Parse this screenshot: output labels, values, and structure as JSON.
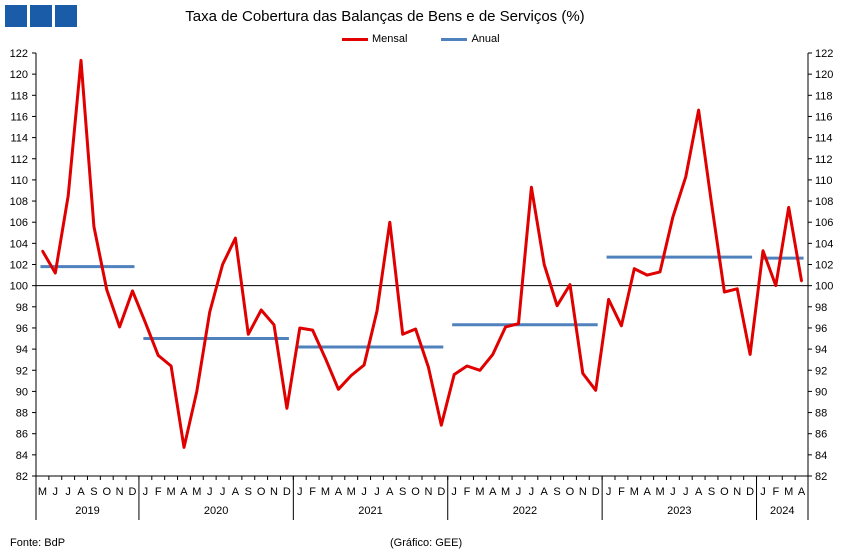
{
  "header": {
    "title": "Taxa de Cobertura das Balanças de Bens e de Serviços (%)",
    "logo_color": "#1a5ca8"
  },
  "footer": {
    "source": "Fonte: BdP",
    "credit": "(Gráfico: GEE)"
  },
  "chart_data": {
    "type": "line",
    "title": "Taxa de Cobertura das Balanças de Bens e de Serviços (%)",
    "xlabel": "",
    "ylabel": "",
    "ylim": [
      82,
      122
    ],
    "y_ticks": [
      82,
      84,
      86,
      88,
      90,
      92,
      94,
      96,
      98,
      100,
      102,
      104,
      106,
      108,
      110,
      112,
      114,
      116,
      118,
      120,
      122
    ],
    "y_axis_both_sides": true,
    "reference_line": 100,
    "grid": false,
    "legend_position": "top-center",
    "months": [
      "M",
      "J",
      "J",
      "A",
      "S",
      "O",
      "N",
      "D",
      "J",
      "F",
      "M",
      "A",
      "M",
      "J",
      "J",
      "A",
      "S",
      "O",
      "N",
      "D",
      "J",
      "F",
      "M",
      "A",
      "M",
      "J",
      "J",
      "A",
      "S",
      "O",
      "N",
      "D",
      "J",
      "F",
      "M",
      "A",
      "M",
      "J",
      "J",
      "A",
      "S",
      "O",
      "N",
      "D",
      "J",
      "F",
      "M",
      "A",
      "M",
      "J",
      "J",
      "A",
      "S",
      "O",
      "N",
      "D",
      "J",
      "F",
      "M",
      "A"
    ],
    "years": [
      {
        "label": "2019",
        "months": 8
      },
      {
        "label": "2020",
        "months": 12
      },
      {
        "label": "2021",
        "months": 12
      },
      {
        "label": "2022",
        "months": 12
      },
      {
        "label": "2023",
        "months": 12
      },
      {
        "label": "2024",
        "months": 4
      }
    ],
    "series": [
      {
        "name": "Mensal",
        "color": "#e00000",
        "values": [
          103.3,
          101.2,
          108.5,
          121.3,
          105.6,
          99.6,
          96.1,
          99.5,
          96.5,
          93.4,
          92.4,
          84.7,
          90.0,
          97.5,
          102.0,
          104.5,
          95.4,
          97.7,
          96.3,
          88.4,
          96.0,
          95.8,
          93.1,
          90.2,
          91.5,
          92.5,
          97.6,
          106.0,
          95.4,
          95.9,
          92.3,
          86.8,
          91.6,
          92.4,
          92.0,
          93.5,
          96.1,
          96.4,
          109.3,
          102.0,
          98.1,
          100.1,
          91.7,
          90.1,
          98.7,
          96.2,
          101.6,
          101.0,
          101.3,
          106.5,
          110.3,
          116.6,
          107.8,
          99.4,
          99.7,
          93.5,
          103.3,
          100.0,
          107.4,
          100.4
        ]
      },
      {
        "name": "Anual",
        "color": "#4f81bd",
        "segments": [
          {
            "year": "2019",
            "value": 101.8
          },
          {
            "year": "2020",
            "value": 95.0
          },
          {
            "year": "2021",
            "value": 94.2
          },
          {
            "year": "2022",
            "value": 96.3
          },
          {
            "year": "2023",
            "value": 102.7
          },
          {
            "year": "2024",
            "value": 102.6
          }
        ]
      }
    ]
  }
}
